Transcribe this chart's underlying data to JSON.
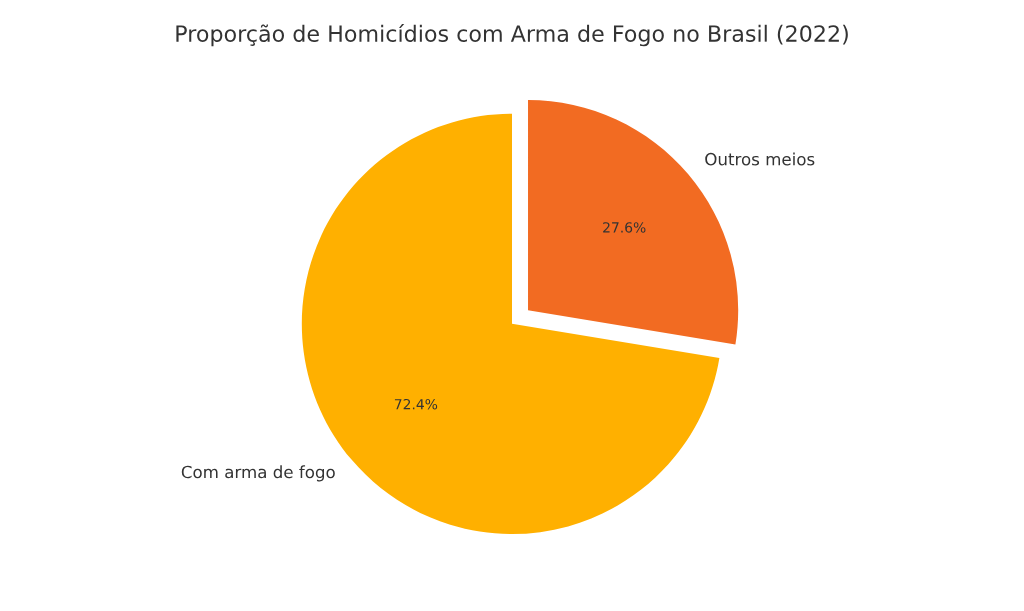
{
  "chart_data": {
    "type": "pie",
    "title": "Proporção de Homicídios com Arma de Fogo no Brasil (2022)",
    "categories": [
      "Com arma de fogo",
      "Outros meios"
    ],
    "values": [
      72.4,
      27.6
    ],
    "value_labels": [
      "72.4%",
      "27.6%"
    ],
    "colors": [
      "#ffb000",
      "#f26b22"
    ]
  }
}
